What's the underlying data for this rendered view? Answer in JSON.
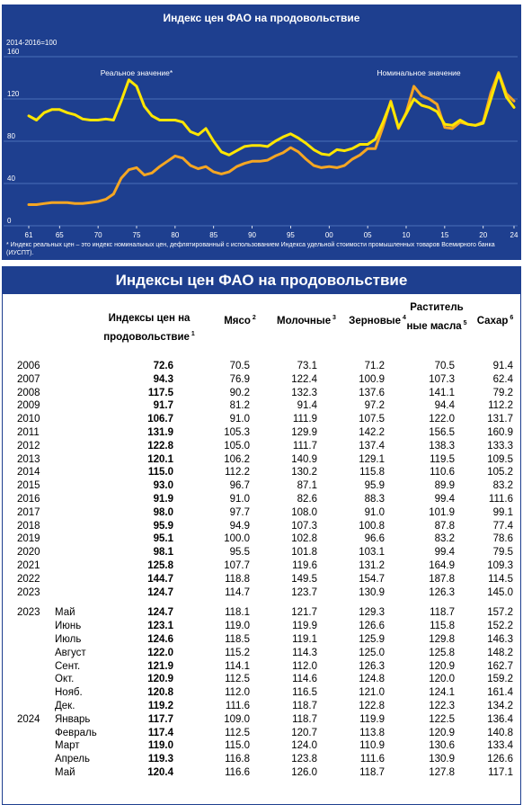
{
  "chart_data": {
    "type": "line",
    "title": "Индекс цен ФАО на продовольствие",
    "unit_note": "2014-2016=100",
    "ylim": [
      0,
      160
    ],
    "y_ticks": [
      0,
      40,
      80,
      120,
      160
    ],
    "x_tick_labels": [
      "61",
      "65",
      "70",
      "75",
      "80",
      "85",
      "90",
      "95",
      "00",
      "05",
      "10",
      "15",
      "20",
      "24"
    ],
    "x": [
      1961,
      1962,
      1963,
      1964,
      1965,
      1966,
      1967,
      1968,
      1969,
      1970,
      1971,
      1972,
      1973,
      1974,
      1975,
      1976,
      1977,
      1978,
      1979,
      1980,
      1981,
      1982,
      1983,
      1984,
      1985,
      1986,
      1987,
      1988,
      1989,
      1990,
      1991,
      1992,
      1993,
      1994,
      1995,
      1996,
      1997,
      1998,
      1999,
      2000,
      2001,
      2002,
      2003,
      2004,
      2005,
      2006,
      2007,
      2008,
      2009,
      2010,
      2011,
      2012,
      2013,
      2014,
      2015,
      2016,
      2017,
      2018,
      2019,
      2020,
      2021,
      2022,
      2023,
      2024
    ],
    "series": [
      {
        "name": "Реальное значение*",
        "color": "#ffe600",
        "values": [
          104,
          100,
          107,
          110,
          110,
          107,
          105,
          101,
          100,
          100,
          101,
          100,
          118,
          138,
          132,
          113,
          104,
          100,
          100,
          100,
          98,
          89,
          86,
          92,
          80,
          70,
          67,
          71,
          75,
          76,
          76,
          75,
          80,
          84,
          87,
          83,
          78,
          72,
          68,
          67,
          72,
          71,
          73,
          77,
          77,
          82,
          98,
          117,
          93,
          106,
          120,
          114,
          112,
          108,
          96,
          95,
          100,
          96,
          95,
          97,
          120,
          144,
          122,
          112
        ]
      },
      {
        "name": "Номинальное значение",
        "color": "#f5a623",
        "values": [
          20,
          20,
          21,
          22,
          22,
          22,
          21,
          21,
          22,
          23,
          25,
          30,
          45,
          53,
          55,
          48,
          50,
          56,
          61,
          66,
          64,
          57,
          54,
          56,
          51,
          49,
          51,
          56,
          59,
          61,
          61,
          62,
          66,
          69,
          74,
          70,
          63,
          57,
          55,
          56,
          55,
          57,
          63,
          67,
          73,
          73,
          94,
          118,
          92,
          107,
          132,
          123,
          120,
          115,
          93,
          92,
          98,
          96,
          95,
          98,
          126,
          145,
          125,
          118
        ]
      }
    ],
    "footnote": "* Индекс реальных цен – это индекс номинальных цен, дефлятированный с использованием Индекса удельной стоимости промышленных товаров Всемирного банка (ИУСПТ).",
    "grid": true,
    "legend": "inline-labels"
  },
  "table": {
    "title": "Индексы цен ФАО на продовольствие",
    "headers": [
      {
        "text": "Индексы цен на продовольствие",
        "sup": "1"
      },
      {
        "text": "Мясо",
        "sup": "2"
      },
      {
        "text": "Молочные",
        "sup": "3"
      },
      {
        "text": "Зерновые",
        "sup": "4"
      },
      {
        "text": "Раститель ные масла",
        "sup": "5"
      },
      {
        "text": "Сахар",
        "sup": "6"
      }
    ],
    "annual": [
      [
        "2006",
        "72.6",
        "70.5",
        "73.1",
        "71.2",
        "70.5",
        "91.4"
      ],
      [
        "2007",
        "94.3",
        "76.9",
        "122.4",
        "100.9",
        "107.3",
        "62.4"
      ],
      [
        "2008",
        "117.5",
        "90.2",
        "132.3",
        "137.6",
        "141.1",
        "79.2"
      ],
      [
        "2009",
        "91.7",
        "81.2",
        "91.4",
        "97.2",
        "94.4",
        "112.2"
      ],
      [
        "2010",
        "106.7",
        "91.0",
        "111.9",
        "107.5",
        "122.0",
        "131.7"
      ],
      [
        "2011",
        "131.9",
        "105.3",
        "129.9",
        "142.2",
        "156.5",
        "160.9"
      ],
      [
        "2012",
        "122.8",
        "105.0",
        "111.7",
        "137.4",
        "138.3",
        "133.3"
      ],
      [
        "2013",
        "120.1",
        "106.2",
        "140.9",
        "129.1",
        "119.5",
        "109.5"
      ],
      [
        "2014",
        "115.0",
        "112.2",
        "130.2",
        "115.8",
        "110.6",
        "105.2"
      ],
      [
        "2015",
        "93.0",
        "96.7",
        "87.1",
        "95.9",
        "89.9",
        "83.2"
      ],
      [
        "2016",
        "91.9",
        "91.0",
        "82.6",
        "88.3",
        "99.4",
        "111.6"
      ],
      [
        "2017",
        "98.0",
        "97.7",
        "108.0",
        "91.0",
        "101.9",
        "99.1"
      ],
      [
        "2018",
        "95.9",
        "94.9",
        "107.3",
        "100.8",
        "87.8",
        "77.4"
      ],
      [
        "2019",
        "95.1",
        "100.0",
        "102.8",
        "96.6",
        "83.2",
        "78.6"
      ],
      [
        "2020",
        "98.1",
        "95.5",
        "101.8",
        "103.1",
        "99.4",
        "79.5"
      ],
      [
        "2021",
        "125.8",
        "107.7",
        "119.6",
        "131.2",
        "164.9",
        "109.3"
      ],
      [
        "2022",
        "144.7",
        "118.8",
        "149.5",
        "154.7",
        "187.8",
        "114.5"
      ],
      [
        "2023",
        "124.7",
        "114.7",
        "123.7",
        "130.9",
        "126.3",
        "145.0"
      ]
    ],
    "monthly": [
      [
        "2023",
        "Май",
        "124.7",
        "118.1",
        "121.7",
        "129.3",
        "118.7",
        "157.2"
      ],
      [
        "",
        "Июнь",
        "123.1",
        "119.0",
        "119.9",
        "126.6",
        "115.8",
        "152.2"
      ],
      [
        "",
        "Июль",
        "124.6",
        "118.5",
        "119.1",
        "125.9",
        "129.8",
        "146.3"
      ],
      [
        "",
        "Август",
        "122.0",
        "115.2",
        "114.3",
        "125.0",
        "125.8",
        "148.2"
      ],
      [
        "",
        "Сент.",
        "121.9",
        "114.1",
        "112.0",
        "126.3",
        "120.9",
        "162.7"
      ],
      [
        "",
        "Окт.",
        "120.9",
        "112.5",
        "114.6",
        "124.8",
        "120.0",
        "159.2"
      ],
      [
        "",
        "Нояб.",
        "120.8",
        "112.0",
        "116.5",
        "121.0",
        "124.1",
        "161.4"
      ],
      [
        "",
        "Дек.",
        "119.2",
        "111.6",
        "118.7",
        "122.8",
        "122.3",
        "134.2"
      ],
      [
        "2024",
        "Январь",
        "117.7",
        "109.0",
        "118.7",
        "119.9",
        "122.5",
        "136.4"
      ],
      [
        "",
        "Февраль",
        "117.4",
        "112.5",
        "120.7",
        "113.8",
        "120.9",
        "140.8"
      ],
      [
        "",
        "Март",
        "119.0",
        "115.0",
        "124.0",
        "110.9",
        "130.6",
        "133.4"
      ],
      [
        "",
        "Апрель",
        "119.3",
        "116.8",
        "123.8",
        "111.6",
        "130.9",
        "126.6"
      ],
      [
        "",
        "Май",
        "120.4",
        "116.6",
        "126.0",
        "118.7",
        "127.8",
        "117.1"
      ]
    ]
  }
}
